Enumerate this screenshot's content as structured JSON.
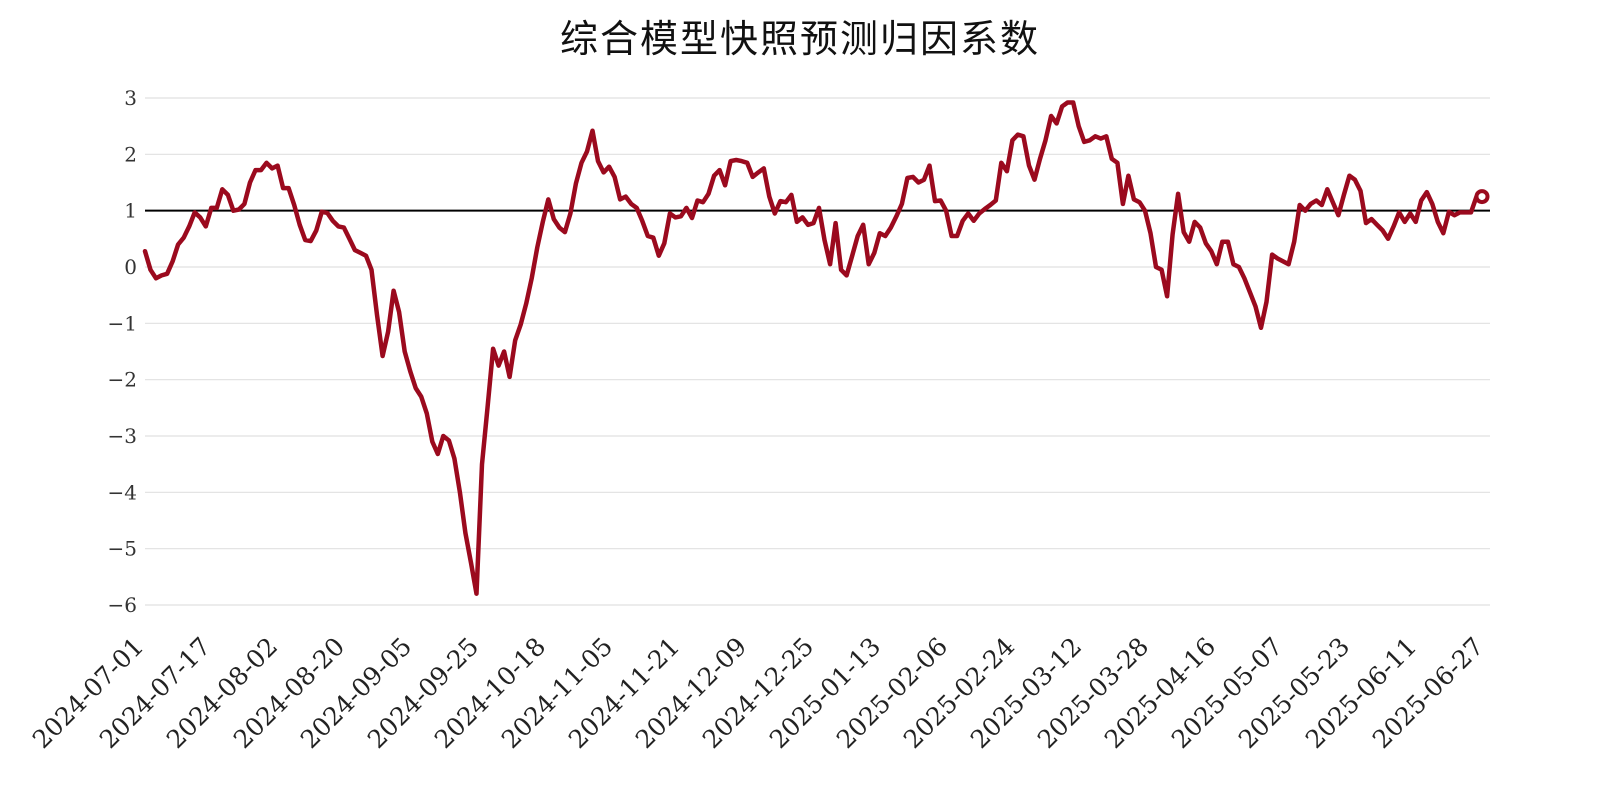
{
  "chart_data": {
    "type": "line",
    "title": "综合模型快照预测归因系数",
    "xlabel": "",
    "ylabel": "",
    "ylim": [
      -6.3,
      3.3
    ],
    "y_ticks": [
      3,
      2,
      1,
      0,
      -1,
      -2,
      -3,
      -4,
      -5,
      -6
    ],
    "y_tick_labels": [
      "3",
      "2",
      "1",
      "0",
      "−1",
      "−2",
      "−3",
      "−4",
      "−5",
      "−6"
    ],
    "x_tick_labels": [
      "2024-07-01",
      "2024-07-17",
      "2024-08-02",
      "2024-08-20",
      "2024-09-05",
      "2024-09-25",
      "2024-10-18",
      "2024-11-05",
      "2024-11-21",
      "2024-12-09",
      "2024-12-25",
      "2025-01-13",
      "2025-02-06",
      "2025-02-24",
      "2025-03-12",
      "2025-03-28",
      "2025-04-16",
      "2025-05-07",
      "2025-05-23",
      "2025-06-11",
      "2025-06-27"
    ],
    "reference_line": 1,
    "grid": true,
    "line_color": "#9b0a1e",
    "reference_color": "#000000",
    "series": [
      {
        "points": [
          [
            0,
            0.28
          ],
          [
            1,
            -0.05
          ],
          [
            2,
            -0.2
          ],
          [
            3,
            -0.15
          ],
          [
            4,
            -0.12
          ],
          [
            5,
            0.1
          ],
          [
            6,
            0.4
          ],
          [
            7,
            0.52
          ],
          [
            8,
            0.72
          ],
          [
            9,
            0.97
          ],
          [
            10,
            0.88
          ],
          [
            11,
            0.72
          ],
          [
            12,
            1.05
          ],
          [
            13,
            1.05
          ],
          [
            14,
            1.38
          ],
          [
            15,
            1.28
          ],
          [
            16,
            1.0
          ],
          [
            17,
            1.02
          ],
          [
            18,
            1.12
          ],
          [
            19,
            1.5
          ],
          [
            20,
            1.72
          ],
          [
            21,
            1.72
          ],
          [
            22,
            1.85
          ],
          [
            23,
            1.75
          ],
          [
            24,
            1.8
          ],
          [
            25,
            1.4
          ],
          [
            26,
            1.4
          ],
          [
            27,
            1.1
          ],
          [
            28,
            0.75
          ],
          [
            29,
            0.48
          ],
          [
            30,
            0.46
          ],
          [
            31,
            0.65
          ],
          [
            32,
            0.98
          ],
          [
            33,
            0.96
          ],
          [
            34,
            0.82
          ],
          [
            35,
            0.72
          ],
          [
            36,
            0.7
          ],
          [
            37,
            0.5
          ],
          [
            38,
            0.3
          ],
          [
            39,
            0.25
          ],
          [
            40,
            0.2
          ],
          [
            41,
            -0.05
          ],
          [
            42,
            -0.85
          ],
          [
            43,
            -1.58
          ],
          [
            44,
            -1.15
          ],
          [
            45,
            -0.42
          ],
          [
            46,
            -0.8
          ],
          [
            47,
            -1.5
          ],
          [
            48,
            -1.85
          ],
          [
            49,
            -2.15
          ],
          [
            50,
            -2.3
          ],
          [
            51,
            -2.6
          ],
          [
            52,
            -3.1
          ],
          [
            53,
            -3.32
          ],
          [
            54,
            -3.0
          ],
          [
            55,
            -3.08
          ],
          [
            56,
            -3.4
          ],
          [
            57,
            -4.0
          ],
          [
            58,
            -4.72
          ],
          [
            59,
            -5.25
          ],
          [
            60,
            -5.8
          ],
          [
            61,
            -3.5
          ],
          [
            62,
            -2.5
          ],
          [
            63,
            -1.45
          ],
          [
            64,
            -1.75
          ],
          [
            65,
            -1.5
          ],
          [
            66,
            -1.95
          ],
          [
            67,
            -1.3
          ],
          [
            68,
            -1.02
          ],
          [
            69,
            -0.65
          ],
          [
            70,
            -0.2
          ],
          [
            71,
            0.35
          ],
          [
            72,
            0.8
          ],
          [
            73,
            1.2
          ],
          [
            74,
            0.85
          ],
          [
            75,
            0.7
          ],
          [
            76,
            0.62
          ],
          [
            77,
            0.95
          ],
          [
            78,
            1.48
          ],
          [
            79,
            1.85
          ],
          [
            80,
            2.05
          ],
          [
            81,
            2.42
          ],
          [
            82,
            1.88
          ],
          [
            83,
            1.68
          ],
          [
            84,
            1.78
          ],
          [
            85,
            1.6
          ],
          [
            86,
            1.2
          ],
          [
            87,
            1.25
          ],
          [
            88,
            1.12
          ],
          [
            89,
            1.05
          ],
          [
            90,
            0.82
          ],
          [
            91,
            0.55
          ],
          [
            92,
            0.52
          ],
          [
            93,
            0.2
          ],
          [
            94,
            0.42
          ],
          [
            95,
            0.95
          ],
          [
            96,
            0.88
          ],
          [
            97,
            0.9
          ],
          [
            98,
            1.05
          ],
          [
            99,
            0.87
          ],
          [
            100,
            1.18
          ],
          [
            101,
            1.15
          ],
          [
            102,
            1.3
          ],
          [
            103,
            1.62
          ],
          [
            104,
            1.72
          ],
          [
            105,
            1.45
          ],
          [
            106,
            1.88
          ],
          [
            107,
            1.9
          ],
          [
            108,
            1.88
          ],
          [
            109,
            1.85
          ],
          [
            110,
            1.6
          ],
          [
            111,
            1.68
          ],
          [
            112,
            1.75
          ],
          [
            113,
            1.25
          ],
          [
            114,
            0.95
          ],
          [
            115,
            1.17
          ],
          [
            116,
            1.15
          ],
          [
            117,
            1.28
          ],
          [
            118,
            0.8
          ],
          [
            119,
            0.88
          ],
          [
            120,
            0.75
          ],
          [
            121,
            0.78
          ],
          [
            122,
            1.05
          ],
          [
            123,
            0.48
          ],
          [
            124,
            0.05
          ],
          [
            125,
            0.78
          ],
          [
            126,
            -0.05
          ],
          [
            127,
            -0.15
          ],
          [
            128,
            0.2
          ],
          [
            129,
            0.55
          ],
          [
            130,
            0.75
          ],
          [
            131,
            0.05
          ],
          [
            132,
            0.25
          ],
          [
            133,
            0.6
          ],
          [
            134,
            0.55
          ],
          [
            135,
            0.7
          ],
          [
            136,
            0.9
          ],
          [
            137,
            1.12
          ],
          [
            138,
            1.58
          ],
          [
            139,
            1.6
          ],
          [
            140,
            1.5
          ],
          [
            141,
            1.55
          ],
          [
            142,
            1.8
          ],
          [
            143,
            1.17
          ],
          [
            144,
            1.18
          ],
          [
            145,
            1.0
          ],
          [
            146,
            0.55
          ],
          [
            147,
            0.55
          ],
          [
            148,
            0.82
          ],
          [
            149,
            0.95
          ],
          [
            150,
            0.82
          ],
          [
            151,
            0.95
          ],
          [
            152,
            1.03
          ],
          [
            153,
            1.1
          ],
          [
            154,
            1.18
          ],
          [
            155,
            1.85
          ],
          [
            156,
            1.7
          ],
          [
            157,
            2.25
          ],
          [
            158,
            2.35
          ],
          [
            159,
            2.32
          ],
          [
            160,
            1.8
          ],
          [
            161,
            1.55
          ],
          [
            162,
            1.92
          ],
          [
            163,
            2.25
          ],
          [
            164,
            2.68
          ],
          [
            165,
            2.55
          ],
          [
            166,
            2.85
          ],
          [
            167,
            2.92
          ],
          [
            168,
            2.92
          ],
          [
            169,
            2.5
          ],
          [
            170,
            2.22
          ],
          [
            171,
            2.25
          ],
          [
            172,
            2.32
          ],
          [
            173,
            2.28
          ],
          [
            174,
            2.32
          ],
          [
            175,
            1.92
          ],
          [
            176,
            1.85
          ],
          [
            177,
            1.12
          ],
          [
            178,
            1.62
          ],
          [
            179,
            1.2
          ],
          [
            180,
            1.15
          ],
          [
            181,
            1.0
          ],
          [
            182,
            0.6
          ],
          [
            183,
            0.0
          ],
          [
            184,
            -0.05
          ],
          [
            185,
            -0.52
          ],
          [
            186,
            0.58
          ],
          [
            187,
            1.3
          ],
          [
            188,
            0.62
          ],
          [
            189,
            0.45
          ],
          [
            190,
            0.8
          ],
          [
            191,
            0.7
          ],
          [
            192,
            0.42
          ],
          [
            193,
            0.28
          ],
          [
            194,
            0.05
          ],
          [
            195,
            0.45
          ],
          [
            196,
            0.45
          ],
          [
            197,
            0.05
          ],
          [
            198,
            0.0
          ],
          [
            199,
            -0.2
          ],
          [
            200,
            -0.45
          ],
          [
            201,
            -0.7
          ],
          [
            202,
            -1.08
          ],
          [
            203,
            -0.62
          ],
          [
            204,
            0.22
          ],
          [
            205,
            0.15
          ],
          [
            206,
            0.1
          ],
          [
            207,
            0.05
          ],
          [
            208,
            0.45
          ],
          [
            209,
            1.1
          ],
          [
            210,
            1.0
          ],
          [
            211,
            1.12
          ],
          [
            212,
            1.18
          ],
          [
            213,
            1.1
          ],
          [
            214,
            1.38
          ],
          [
            215,
            1.15
          ],
          [
            216,
            0.92
          ],
          [
            217,
            1.28
          ],
          [
            218,
            1.62
          ],
          [
            219,
            1.55
          ],
          [
            220,
            1.35
          ],
          [
            221,
            0.78
          ],
          [
            222,
            0.85
          ],
          [
            223,
            0.75
          ],
          [
            224,
            0.65
          ],
          [
            225,
            0.5
          ],
          [
            226,
            0.72
          ],
          [
            227,
            0.97
          ],
          [
            228,
            0.8
          ],
          [
            229,
            0.95
          ],
          [
            230,
            0.8
          ],
          [
            231,
            1.18
          ],
          [
            232,
            1.33
          ],
          [
            233,
            1.12
          ],
          [
            234,
            0.8
          ],
          [
            235,
            0.6
          ],
          [
            236,
            0.98
          ],
          [
            237,
            0.92
          ],
          [
            238,
            0.97
          ],
          [
            239,
            0.97
          ],
          [
            240,
            0.97
          ],
          [
            241,
            1.25
          ],
          [
            242,
            1.25
          ]
        ]
      }
    ]
  }
}
